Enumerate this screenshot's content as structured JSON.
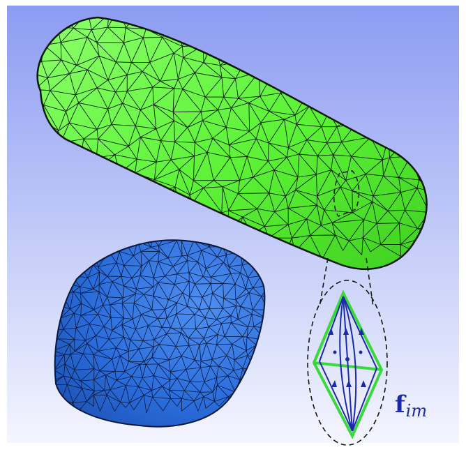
{
  "figure": {
    "background_top_color": "#8c9cf2",
    "background_bottom_color": "#f4f5fe",
    "green_mesh": {
      "name": "green-capsule-mesh",
      "fill": "#5cf236",
      "edge": "#0a1a0a"
    },
    "blue_mesh": {
      "name": "blue-cylinder-mesh",
      "fill": "#2a6cdb",
      "edge": "#08183a"
    },
    "inset": {
      "outer_edge_color": "#3ad93a",
      "inner_edge_color": "#1a2aa8",
      "callout_style": "dashed"
    },
    "label": {
      "main": "f",
      "sub": "im"
    }
  }
}
